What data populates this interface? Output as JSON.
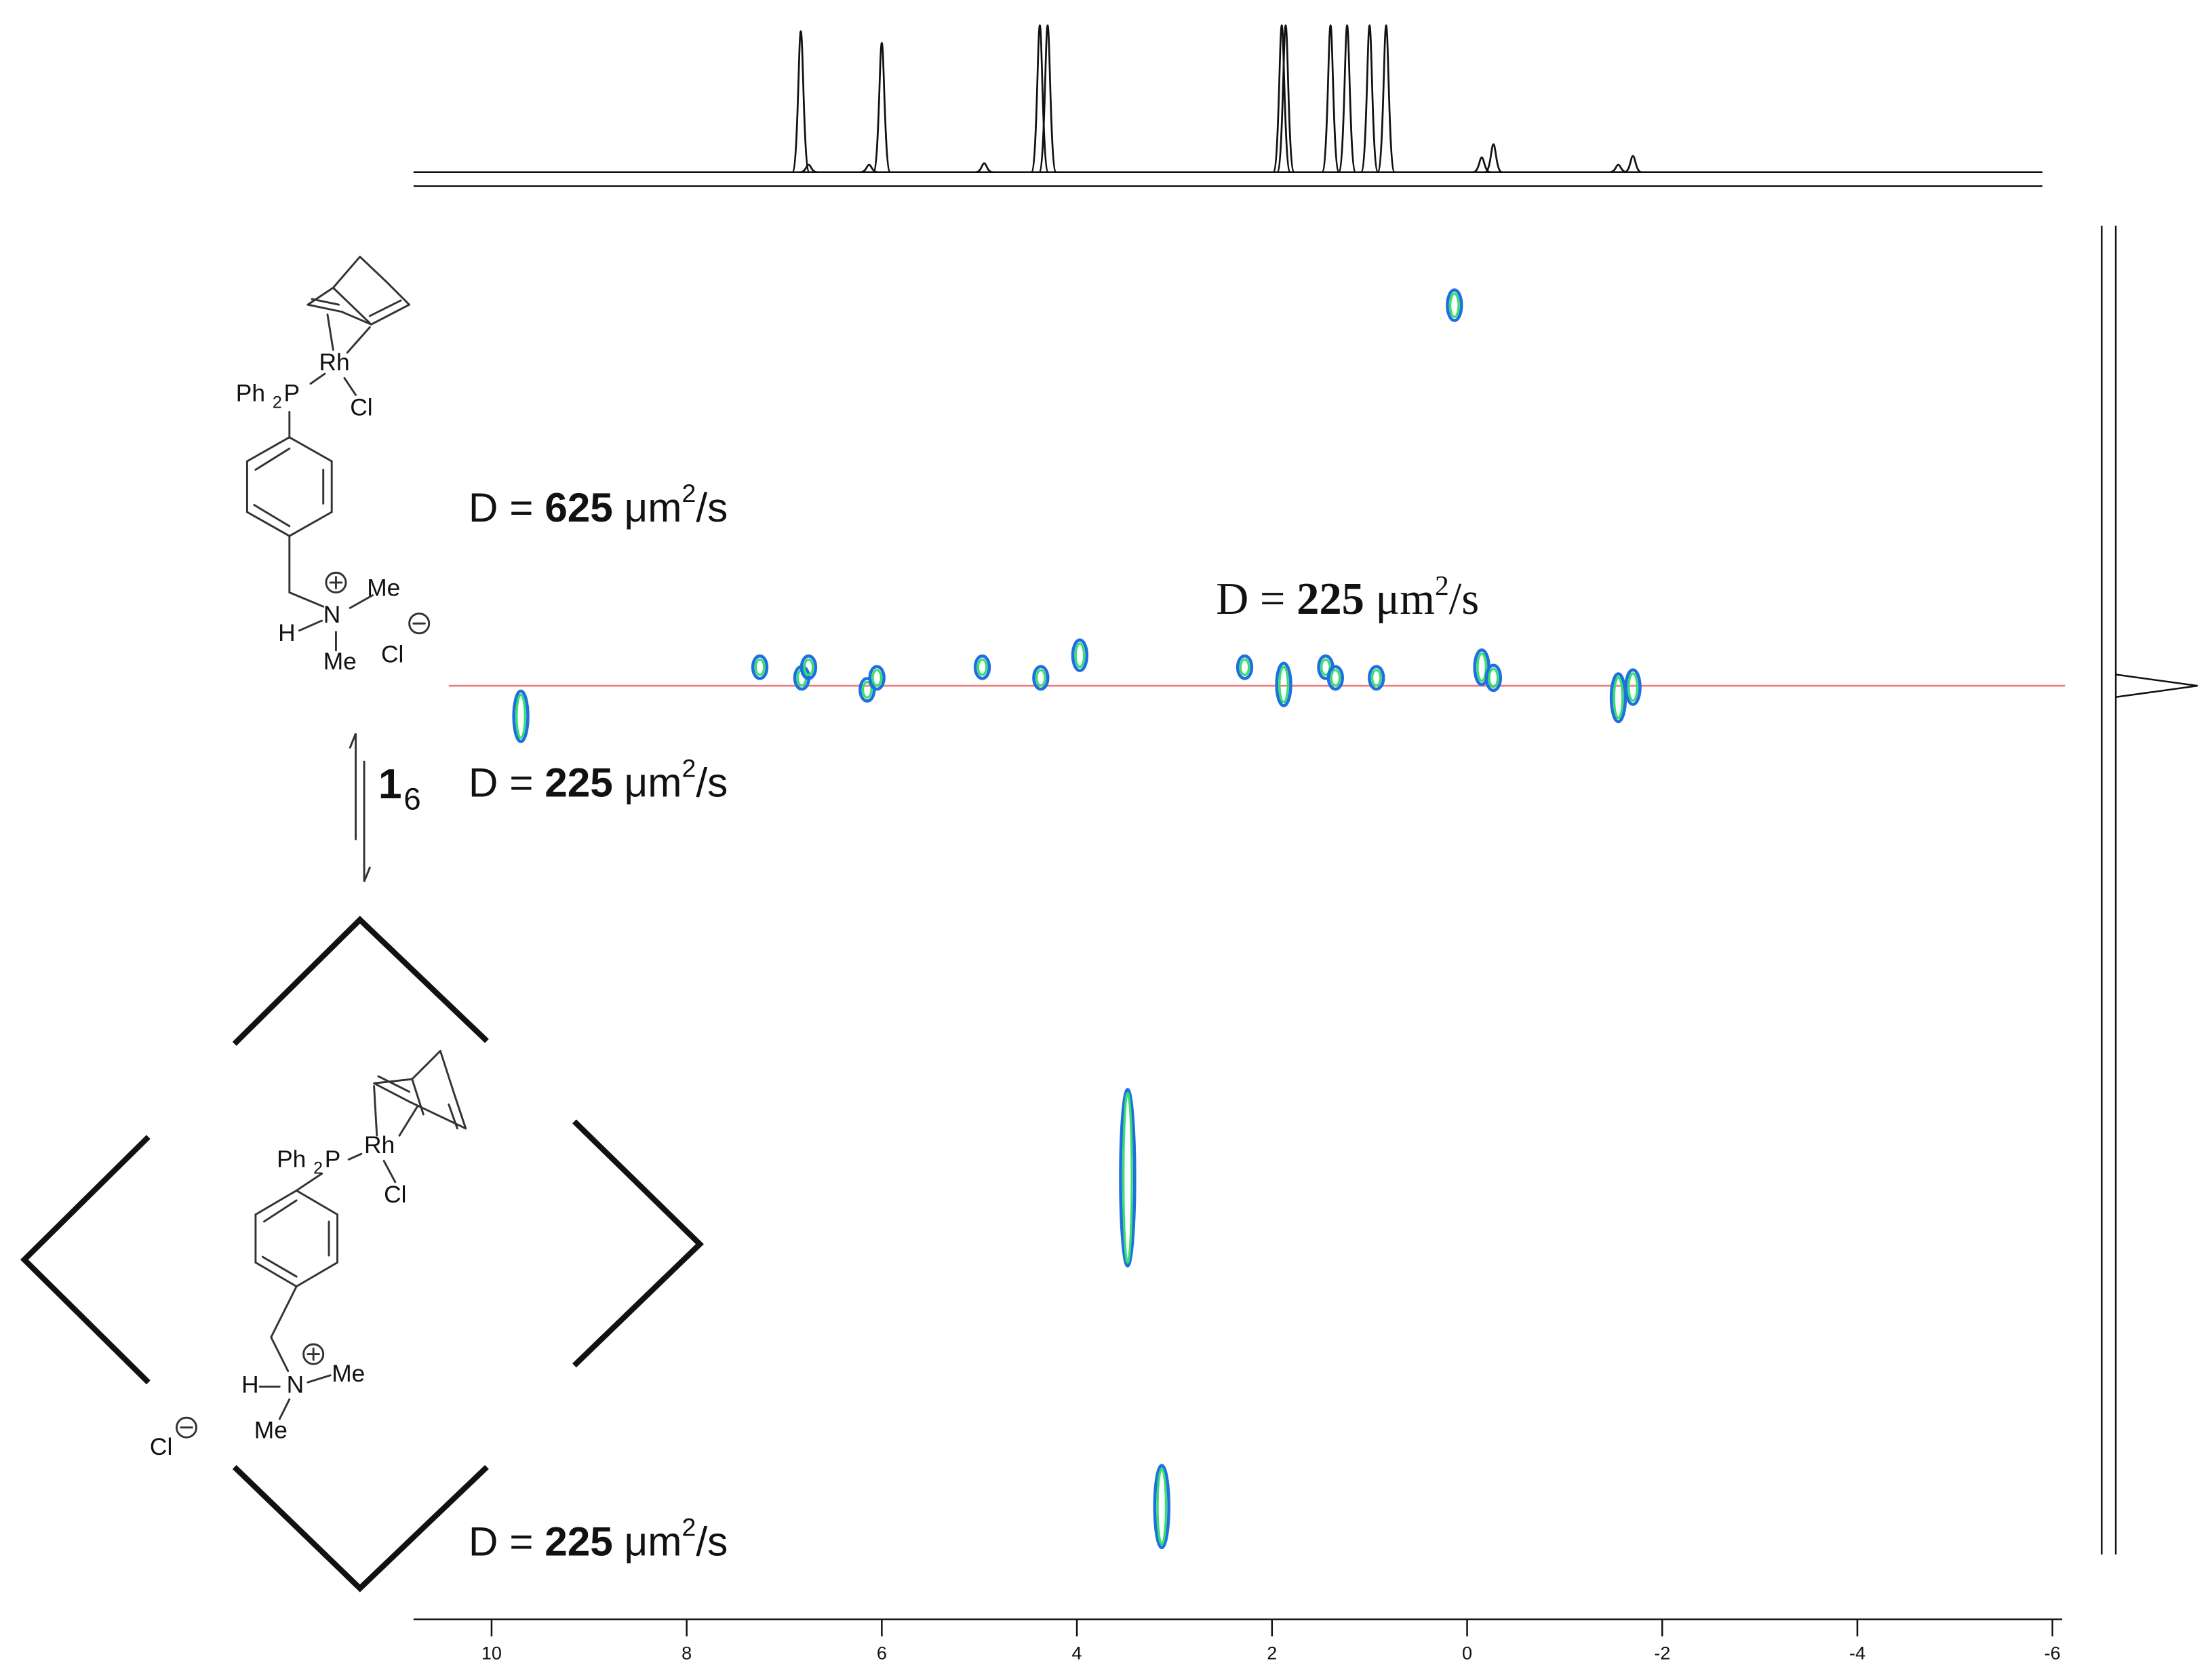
{
  "chart_data": {
    "type": "scatter",
    "xlim": [
      10.8,
      -6.1
    ],
    "xticks": [
      10,
      8,
      6,
      4,
      2,
      0,
      -2,
      -4,
      -6
    ],
    "ylim": [
      0,
      100
    ],
    "reference_y": 34.7,
    "reference_color": "#f08080",
    "series": [
      {
        "color": "#1f6fe0",
        "ring_color": "#33e070",
        "x": [
          0.13,
          9.7,
          7.25,
          6.82,
          6.75,
          6.15,
          6.05,
          4.97,
          4.37,
          3.97,
          2.28,
          1.88,
          1.45,
          1.35,
          0.93,
          -0.15,
          -0.27,
          -1.55,
          -1.7,
          3.48,
          3.13
        ],
        "values": [
          6.0,
          37.0,
          33.3,
          34.1,
          33.3,
          35.0,
          34.1,
          33.3,
          34.1,
          32.4,
          33.3,
          34.6,
          33.3,
          34.1,
          34.1,
          33.3,
          34.1,
          35.6,
          34.8,
          71.8,
          96.6
        ],
        "sizes": [
          2.3,
          3.8,
          1.7,
          1.7,
          1.7,
          1.7,
          1.7,
          1.7,
          1.7,
          2.3,
          1.7,
          3.2,
          1.7,
          1.7,
          1.7,
          2.6,
          1.9,
          3.6,
          2.6,
          13.3,
          6.2
        ]
      }
    ],
    "projection": {
      "ylim": [
        0,
        100
      ],
      "color": "#111111",
      "x": [
        6.83,
        6.75,
        6.13,
        6.0,
        4.95,
        4.38,
        4.3,
        1.9,
        1.86,
        1.4,
        1.23,
        1.0,
        0.83,
        -0.15,
        -0.27,
        -1.55,
        -1.7
      ],
      "values": [
        96,
        5,
        5,
        88,
        6,
        100,
        100,
        100,
        100,
        100,
        100,
        100,
        100,
        10,
        19,
        5,
        11
      ]
    }
  },
  "annotations": [
    {
      "prefix": "D = ",
      "value": 625,
      "unit": " μm",
      "sup": "2",
      "suffix": "/s",
      "font": "sans"
    },
    {
      "prefix": "D = ",
      "value": 225,
      "unit": " μm",
      "sup": "2",
      "suffix": "/s",
      "font": "serif"
    },
    {
      "prefix": "D = ",
      "value": 225,
      "unit": " μm",
      "sup": "2",
      "suffix": "/s",
      "font": "sans"
    },
    {
      "prefix": "D = ",
      "value": 225,
      "unit": " μm",
      "sup": "2",
      "suffix": "/s",
      "font": "sans"
    }
  ],
  "structures": [
    {
      "labels": [
        "Ph",
        "2",
        "P",
        "Rh",
        "Cl",
        "N",
        "Me",
        "H",
        "Me",
        "Cl"
      ]
    },
    {
      "labels": [
        "Ph",
        "2",
        "P",
        "Rh",
        "Cl",
        "N",
        "Me",
        "H",
        "Me",
        "Cl"
      ]
    }
  ],
  "equilibrium": {
    "compound": "1",
    "count": "6"
  }
}
